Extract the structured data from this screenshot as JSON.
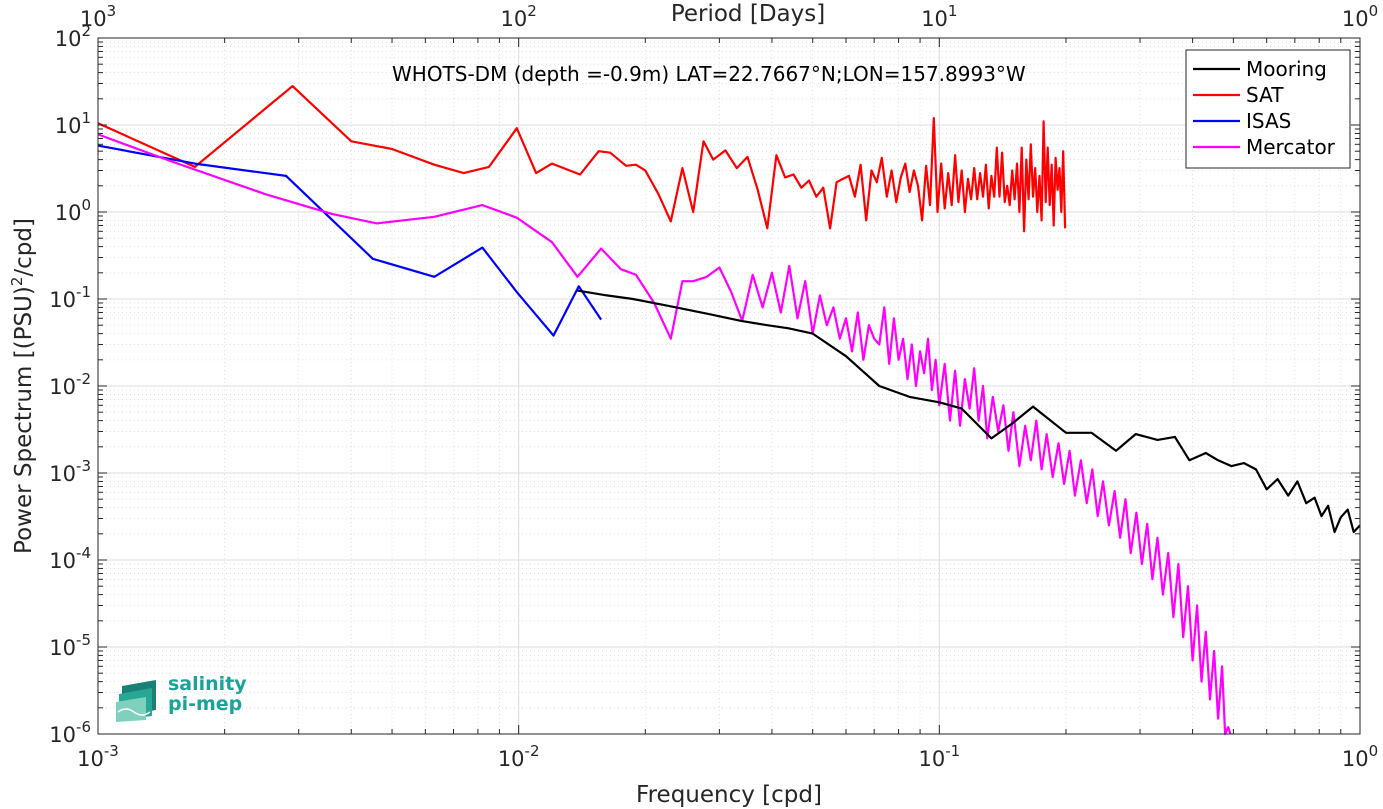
{
  "chart_data": {
    "type": "line",
    "title": "WHOTS-DM (depth =-0.9m) LAT=22.7667°N;LON=157.8993°W",
    "xlabel": "Frequency [cpd]",
    "ylabel": "Power Spectrum [(PSU)²/cpd]",
    "top_xlabel": "Period [Days]",
    "x_scale": "log",
    "y_scale": "log",
    "xlim": [
      0.001,
      1
    ],
    "ylim": [
      1e-06,
      100
    ],
    "grid": true,
    "minor_grid": true,
    "legend_position": "top-right",
    "x_ticks": [
      {
        "value": 0.001,
        "base": "10",
        "exp": "-3"
      },
      {
        "value": 0.01,
        "base": "10",
        "exp": "-2"
      },
      {
        "value": 0.1,
        "base": "10",
        "exp": "-1"
      },
      {
        "value": 1,
        "base": "10",
        "exp": "0"
      }
    ],
    "top_ticks": [
      {
        "value": 0.001,
        "base": "10",
        "exp": "3"
      },
      {
        "value": 0.01,
        "base": "10",
        "exp": "2"
      },
      {
        "value": 0.1,
        "base": "10",
        "exp": "1"
      },
      {
        "value": 1,
        "base": "10",
        "exp": "0"
      }
    ],
    "y_ticks": [
      {
        "value": 100,
        "base": "10",
        "exp": "2"
      },
      {
        "value": 10,
        "base": "10",
        "exp": "1"
      },
      {
        "value": 1,
        "base": "10",
        "exp": "0"
      },
      {
        "value": 0.1,
        "base": "10",
        "exp": "-1"
      },
      {
        "value": 0.01,
        "base": "10",
        "exp": "-2"
      },
      {
        "value": 0.001,
        "base": "10",
        "exp": "-3"
      },
      {
        "value": 0.0001,
        "base": "10",
        "exp": "-4"
      },
      {
        "value": 1e-05,
        "base": "10",
        "exp": "-5"
      },
      {
        "value": 1e-06,
        "base": "10",
        "exp": "-6"
      }
    ],
    "series": [
      {
        "name": "Mooring",
        "color": "#000000",
        "x": [
          0.0138,
          0.0162,
          0.0187,
          0.0237,
          0.0288,
          0.0338,
          0.039,
          0.0438,
          0.05,
          0.06,
          0.072,
          0.085,
          0.1,
          0.113,
          0.133,
          0.15,
          0.167,
          0.2,
          0.23,
          0.263,
          0.293,
          0.33,
          0.363,
          0.393,
          0.43,
          0.46,
          0.495,
          0.53,
          0.566,
          0.6,
          0.637,
          0.675,
          0.71,
          0.745,
          0.78,
          0.81,
          0.84,
          0.87,
          0.9,
          0.935,
          0.966,
          1.0
        ],
        "y": [
          0.125,
          0.11,
          0.1,
          0.08,
          0.066,
          0.056,
          0.05,
          0.046,
          0.04,
          0.022,
          0.01,
          0.0075,
          0.0065,
          0.0055,
          0.0025,
          0.0038,
          0.0058,
          0.0029,
          0.0029,
          0.0018,
          0.0028,
          0.0024,
          0.0026,
          0.0014,
          0.0017,
          0.0014,
          0.0012,
          0.0013,
          0.0011,
          0.00065,
          0.00085,
          0.00055,
          0.0008,
          0.00045,
          0.00052,
          0.00032,
          0.00042,
          0.00021,
          0.00031,
          0.00038,
          0.00021,
          0.00025
        ]
      },
      {
        "name": "SAT",
        "color": "#ff0000",
        "x": [
          0.001,
          0.0017,
          0.0029,
          0.004,
          0.005,
          0.0063,
          0.0074,
          0.0085,
          0.0099,
          0.011,
          0.012,
          0.014,
          0.0155,
          0.0165,
          0.018,
          0.019,
          0.02,
          0.0215,
          0.023,
          0.0245,
          0.026,
          0.0275,
          0.029,
          0.031,
          0.033,
          0.035,
          0.037,
          0.039,
          0.041,
          0.043,
          0.045,
          0.047,
          0.049,
          0.051,
          0.053,
          0.055,
          0.057,
          0.059,
          0.061,
          0.063,
          0.065,
          0.067,
          0.069,
          0.071,
          0.073,
          0.075,
          0.077,
          0.079,
          0.081,
          0.083,
          0.085,
          0.087,
          0.089,
          0.091,
          0.093,
          0.095,
          0.097,
          0.099,
          0.101,
          0.103,
          0.105,
          0.107,
          0.109,
          0.111,
          0.113,
          0.115,
          0.117,
          0.119,
          0.121,
          0.123,
          0.125,
          0.127,
          0.129,
          0.131,
          0.133,
          0.135,
          0.137,
          0.139,
          0.141,
          0.143,
          0.145,
          0.147,
          0.149,
          0.151,
          0.153,
          0.155,
          0.157,
          0.159,
          0.161,
          0.163,
          0.165,
          0.167,
          0.169,
          0.171,
          0.173,
          0.175,
          0.177,
          0.179,
          0.181,
          0.183,
          0.185,
          0.187,
          0.189,
          0.191,
          0.193,
          0.195,
          0.197,
          0.199
        ],
        "y": [
          10.5,
          3.3,
          28.0,
          6.5,
          5.3,
          3.5,
          2.8,
          3.3,
          9.2,
          2.8,
          3.6,
          2.7,
          5.0,
          4.8,
          3.4,
          3.5,
          3.0,
          1.6,
          0.78,
          3.2,
          1.0,
          6.5,
          4.0,
          5.1,
          3.2,
          4.3,
          1.8,
          0.65,
          4.5,
          2.5,
          2.7,
          1.9,
          2.3,
          1.5,
          1.9,
          0.65,
          2.2,
          2.4,
          2.6,
          1.5,
          3.5,
          0.8,
          3.0,
          2.2,
          4.2,
          1.5,
          3.0,
          1.3,
          2.5,
          3.6,
          1.7,
          3.0,
          2.0,
          0.8,
          3.4,
          1.2,
          12.0,
          1.0,
          3.6,
          1.1,
          2.8,
          1.2,
          4.5,
          1.3,
          3.0,
          1.0,
          2.4,
          1.4,
          3.2,
          1.4,
          2.8,
          1.5,
          3.5,
          1.1,
          2.6,
          1.5,
          5.5,
          1.5,
          4.8,
          1.3,
          2.0,
          1.2,
          3.0,
          1.4,
          3.6,
          1.0,
          5.5,
          0.6,
          4.0,
          1.4,
          6.0,
          1.5,
          3.2,
          1.0,
          2.6,
          0.8,
          11.0,
          1.3,
          5.5,
          1.2,
          3.5,
          0.7,
          4.2,
          1.8,
          3.2,
          1.0,
          5.0,
          0.65
        ]
      },
      {
        "name": "ISAS",
        "color": "#0000ff",
        "x": [
          0.001,
          0.0017,
          0.0028,
          0.0045,
          0.0063,
          0.0082,
          0.0099,
          0.0121,
          0.0139,
          0.0157
        ],
        "y": [
          5.8,
          3.6,
          2.6,
          0.29,
          0.18,
          0.39,
          0.12,
          0.038,
          0.14,
          0.058
        ]
      },
      {
        "name": "Mercator",
        "color": "#ff00ff",
        "x": [
          0.001,
          0.0015,
          0.0025,
          0.0036,
          0.0046,
          0.0063,
          0.0082,
          0.0099,
          0.012,
          0.0138,
          0.0157,
          0.0175,
          0.019,
          0.021,
          0.023,
          0.0245,
          0.026,
          0.028,
          0.03,
          0.032,
          0.034,
          0.036,
          0.038,
          0.04,
          0.042,
          0.044,
          0.046,
          0.048,
          0.05,
          0.052,
          0.054,
          0.056,
          0.058,
          0.06,
          0.062,
          0.064,
          0.066,
          0.068,
          0.07,
          0.072,
          0.074,
          0.076,
          0.078,
          0.08,
          0.082,
          0.084,
          0.086,
          0.088,
          0.09,
          0.092,
          0.094,
          0.096,
          0.098,
          0.1,
          0.103,
          0.106,
          0.109,
          0.112,
          0.115,
          0.118,
          0.121,
          0.124,
          0.127,
          0.13,
          0.134,
          0.138,
          0.142,
          0.146,
          0.15,
          0.155,
          0.16,
          0.165,
          0.17,
          0.175,
          0.18,
          0.186,
          0.192,
          0.198,
          0.204,
          0.21,
          0.217,
          0.224,
          0.231,
          0.238,
          0.245,
          0.253,
          0.261,
          0.269,
          0.277,
          0.285,
          0.294,
          0.303,
          0.312,
          0.321,
          0.33,
          0.34,
          0.35,
          0.36,
          0.37,
          0.38,
          0.39,
          0.4,
          0.41,
          0.42,
          0.43,
          0.44,
          0.45,
          0.46,
          0.47,
          0.478,
          0.486,
          0.492
        ],
        "y": [
          7.8,
          3.8,
          1.6,
          0.95,
          0.74,
          0.88,
          1.2,
          0.86,
          0.45,
          0.18,
          0.38,
          0.22,
          0.19,
          0.09,
          0.035,
          0.16,
          0.16,
          0.18,
          0.23,
          0.12,
          0.056,
          0.19,
          0.08,
          0.2,
          0.07,
          0.24,
          0.06,
          0.16,
          0.04,
          0.11,
          0.05,
          0.08,
          0.035,
          0.06,
          0.025,
          0.07,
          0.02,
          0.05,
          0.035,
          0.03,
          0.08,
          0.018,
          0.06,
          0.02,
          0.035,
          0.012,
          0.03,
          0.01,
          0.025,
          0.014,
          0.035,
          0.009,
          0.02,
          0.006,
          0.018,
          0.004,
          0.015,
          0.0035,
          0.012,
          0.0055,
          0.016,
          0.004,
          0.01,
          0.0025,
          0.0075,
          0.003,
          0.006,
          0.0018,
          0.005,
          0.0012,
          0.0035,
          0.0014,
          0.004,
          0.0011,
          0.0028,
          0.0009,
          0.0022,
          0.00075,
          0.0018,
          0.00055,
          0.0014,
          0.00045,
          0.0011,
          0.00032,
          0.0008,
          0.00025,
          0.00062,
          0.00018,
          0.0005,
          0.00012,
          0.00035,
          9e-05,
          0.00026,
          6e-05,
          0.00018,
          4e-05,
          0.00012,
          2.2e-05,
          9e-05,
          1.3e-05,
          5e-05,
          7e-06,
          3e-05,
          4e-06,
          1.5e-05,
          2.5e-06,
          9e-06,
          1.5e-06,
          6e-06,
          1e-06,
          1.2e-06,
          1e-06
        ]
      }
    ]
  },
  "logo": {
    "line1": "salinity",
    "line2": "pi-mep",
    "color": "#1ba399"
  }
}
